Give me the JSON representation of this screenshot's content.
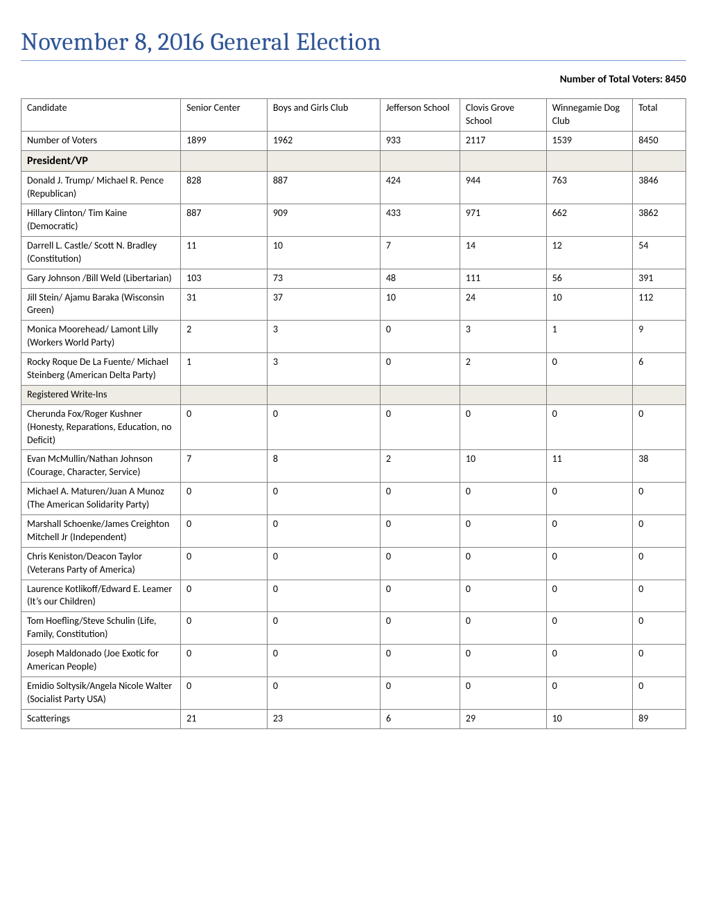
{
  "page": {
    "title": "November 8, 2016 General Election",
    "total_voters_label": "Number of Total Voters: 8450"
  },
  "table": {
    "columns": [
      "Candidate",
      "Senior Center",
      "Boys and Girls Club",
      "Jefferson School",
      "Clovis Grove School",
      "Winnegamie Dog Club",
      "Total"
    ],
    "rows": [
      {
        "type": "data",
        "cells": [
          "Number of Voters",
          "1899",
          "1962",
          "933",
          "2117",
          "1539",
          "8450"
        ]
      },
      {
        "type": "section",
        "cells": [
          "President/VP",
          "",
          "",
          "",
          "",
          "",
          ""
        ]
      },
      {
        "type": "data",
        "cells": [
          "Donald J. Trump/ Michael R. Pence (Republican)",
          "828",
          "887",
          "424",
          "944",
          "763",
          "3846"
        ]
      },
      {
        "type": "data",
        "cells": [
          "Hillary Clinton/ Tim Kaine (Democratic)",
          "887",
          "909",
          "433",
          "971",
          "662",
          "3862"
        ]
      },
      {
        "type": "data",
        "cells": [
          "Darrell L. Castle/ Scott N. Bradley (Constitution)",
          "11",
          "10",
          "7",
          "14",
          "12",
          "54"
        ]
      },
      {
        "type": "data",
        "cells": [
          "Gary Johnson /Bill Weld (Libertarian)",
          "103",
          "73",
          "48",
          "111",
          "56",
          "391"
        ]
      },
      {
        "type": "data",
        "cells": [
          "Jill Stein/ Ajamu Baraka (Wisconsin Green)",
          "31",
          "37",
          "10",
          "24",
          "10",
          "112"
        ]
      },
      {
        "type": "data",
        "cells": [
          "Monica Moorehead/ Lamont Lilly (Workers World Party)",
          "2",
          "3",
          "0",
          "3",
          "1",
          "9"
        ]
      },
      {
        "type": "data",
        "cells": [
          "Rocky Roque De La Fuente/ Michael Steinberg (American Delta Party)",
          "1",
          "3",
          "0",
          "2",
          "0",
          "6"
        ]
      },
      {
        "type": "section-plain",
        "cells": [
          "Registered Write-Ins",
          "",
          "",
          "",
          "",
          "",
          ""
        ]
      },
      {
        "type": "data",
        "cells": [
          "Cherunda Fox/Roger Kushner (Honesty, Reparations, Education, no Deficit)",
          "0",
          "0",
          "0",
          "0",
          "0",
          "0"
        ]
      },
      {
        "type": "data",
        "cells": [
          "Evan McMullin/Nathan Johnson (Courage, Character, Service)",
          "7",
          "8",
          "2",
          "10",
          "11",
          "38"
        ]
      },
      {
        "type": "data",
        "cells": [
          "Michael A. Maturen/Juan A Munoz (The American Solidarity Party)",
          "0",
          "0",
          "0",
          "0",
          "0",
          "0"
        ]
      },
      {
        "type": "data",
        "cells": [
          "Marshall Schoenke/James Creighton Mitchell Jr (Independent)",
          "0",
          "0",
          "0",
          "0",
          "0",
          "0"
        ]
      },
      {
        "type": "data",
        "cells": [
          "Chris Keniston/Deacon Taylor (Veterans Party of America)",
          "0",
          "0",
          "0",
          "0",
          "0",
          "0"
        ]
      },
      {
        "type": "data",
        "cells": [
          "Laurence Kotlikoff/Edward E. Leamer (It’s our Children)",
          "0",
          "0",
          "0",
          "0",
          "0",
          "0"
        ]
      },
      {
        "type": "data",
        "cells": [
          "Tom Hoefling/Steve Schulin (Life, Family, Constitution)",
          "0",
          "0",
          "0",
          "0",
          "0",
          "0"
        ]
      },
      {
        "type": "data",
        "cells": [
          "Joseph Maldonado (Joe Exotic for American People)",
          "0",
          "0",
          "0",
          "0",
          "0",
          "0"
        ]
      },
      {
        "type": "data",
        "cells": [
          "Emidio Soltysik/Angela Nicole Walter (Socialist Party USA)",
          "0",
          "0",
          "0",
          "0",
          "0",
          "0"
        ]
      },
      {
        "type": "data",
        "cells": [
          "Scatterings",
          "21",
          "23",
          "6",
          "29",
          "10",
          "89"
        ]
      }
    ]
  },
  "styling": {
    "title_color": "#2e5496",
    "rule_color": "#7a9bd4",
    "border_color": "#7f7f7f",
    "section_bg": "#eeece4",
    "body_font": "Calibri",
    "title_font": "Cambria",
    "title_fontsize": 36,
    "body_fontsize": 14,
    "section_fontsize": 16
  }
}
